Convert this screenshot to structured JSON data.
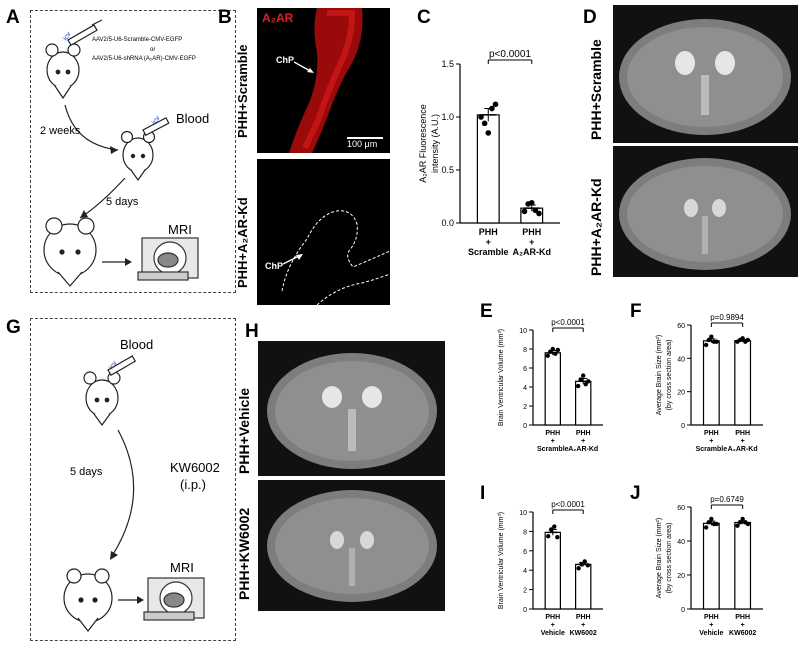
{
  "panels": {
    "A": "A",
    "B": "B",
    "C": "C",
    "D": "D",
    "E": "E",
    "F": "F",
    "G": "G",
    "H": "H",
    "I": "I",
    "J": "J"
  },
  "panelA": {
    "icv_top": "icv",
    "virus_scramble": "AAV2/5-U6-Scramble-CMV-EGFP",
    "virus_or": "or",
    "virus_shrna": "AAV2/5-U6-shRNA (A₂AR)-CMV-EGFP",
    "time_2weeks": "2 weeks",
    "icv_mid": "icv",
    "blood": "Blood",
    "time_5days": "5 days",
    "mri": "MRI"
  },
  "panelB": {
    "stain_label": "A₂AR",
    "row1_label": "PHH+Scramble",
    "row2_label": "PHH+A₂AR-Kd",
    "chp_top": "ChP",
    "chp_bottom": "ChP",
    "scale_bar": "100 μm"
  },
  "panelD": {
    "row1_label": "PHH+Scramble",
    "row2_label": "PHH+A₂AR-Kd"
  },
  "panelG": {
    "icv": "icv",
    "blood": "Blood",
    "time_5days": "5 days",
    "drug": "KW6002",
    "route": "(i.p.)",
    "mri": "MRI"
  },
  "panelH": {
    "row1_label": "PHH+Vehicle",
    "row2_label": "PHH+KW6002"
  },
  "chart_data": [
    {
      "id": "C",
      "type": "bar",
      "categories": [
        "PHH\n+\nScramble",
        "PHH\n+\nA₂AR-Kd"
      ],
      "values": [
        1.02,
        0.14
      ],
      "sem": [
        0.06,
        0.03
      ],
      "points": [
        [
          1.0,
          0.94,
          0.85,
          1.08,
          1.12
        ],
        [
          0.11,
          0.18,
          0.19,
          0.12,
          0.09
        ]
      ],
      "ylabel": "A₂AR Fluorescence intensity (A.U.)",
      "ylim": [
        0,
        1.5
      ],
      "yticks": [
        "0.0",
        "0.5",
        "1.0",
        "1.5"
      ],
      "annotation": "p<0.0001"
    },
    {
      "id": "E",
      "type": "bar",
      "categories": [
        "PHH\n+\nScramble",
        "PHH\n+\nA₂AR-Kd"
      ],
      "values": [
        7.6,
        4.6
      ],
      "sem": [
        0.25,
        0.3
      ],
      "points": [
        [
          7.3,
          7.7,
          8.0,
          7.5,
          7.9
        ],
        [
          4.1,
          4.8,
          5.2,
          4.3,
          4.6
        ]
      ],
      "ylabel": "Brain Ventricular Volume (mm³)",
      "ylim": [
        0,
        10
      ],
      "yticks": [
        "0",
        "2",
        "4",
        "6",
        "8",
        "10"
      ],
      "annotation": "p<0.0001"
    },
    {
      "id": "F",
      "type": "bar",
      "categories": [
        "PHH\n+\nScramble",
        "PHH\n+\nA₂AR-Kd"
      ],
      "values": [
        50.5,
        50.6
      ],
      "sem": [
        1.2,
        0.8
      ],
      "points": [
        [
          48,
          51,
          53,
          50,
          50
        ],
        [
          50,
          51,
          52,
          50,
          51
        ]
      ],
      "ylabel": "Average Brain Size (mm²) (by cross section area)",
      "ylim": [
        0,
        60
      ],
      "yticks": [
        "0",
        "20",
        "40",
        "60"
      ],
      "annotation": "p=0.9894"
    },
    {
      "id": "I",
      "type": "bar",
      "categories": [
        "PHH\n+\nVehicle",
        "PHH\n+\nKW6002"
      ],
      "values": [
        7.9,
        4.6
      ],
      "sem": [
        0.3,
        0.2
      ],
      "points": [
        [
          7.5,
          8.2,
          8.5,
          7.4
        ],
        [
          4.2,
          4.6,
          4.9,
          4.5
        ]
      ],
      "ylabel": "Brain Ventricular Volume (mm³)",
      "ylim": [
        0,
        10
      ],
      "yticks": [
        "0",
        "2",
        "4",
        "6",
        "8",
        "10"
      ],
      "annotation": "p<0.0001"
    },
    {
      "id": "J",
      "type": "bar",
      "categories": [
        "PHH\n+\nVehicle",
        "PHH\n+\nKW6002"
      ],
      "values": [
        50.4,
        50.9
      ],
      "sem": [
        1.3,
        1.0
      ],
      "points": [
        [
          48,
          51,
          53,
          50,
          50
        ],
        [
          49,
          51,
          53,
          51,
          50
        ]
      ],
      "ylabel": "Average Brain Size (mm²) (by cross section area)",
      "ylim": [
        0,
        60
      ],
      "yticks": [
        "0",
        "20",
        "40",
        "60"
      ],
      "annotation": "p=0.6749"
    }
  ]
}
